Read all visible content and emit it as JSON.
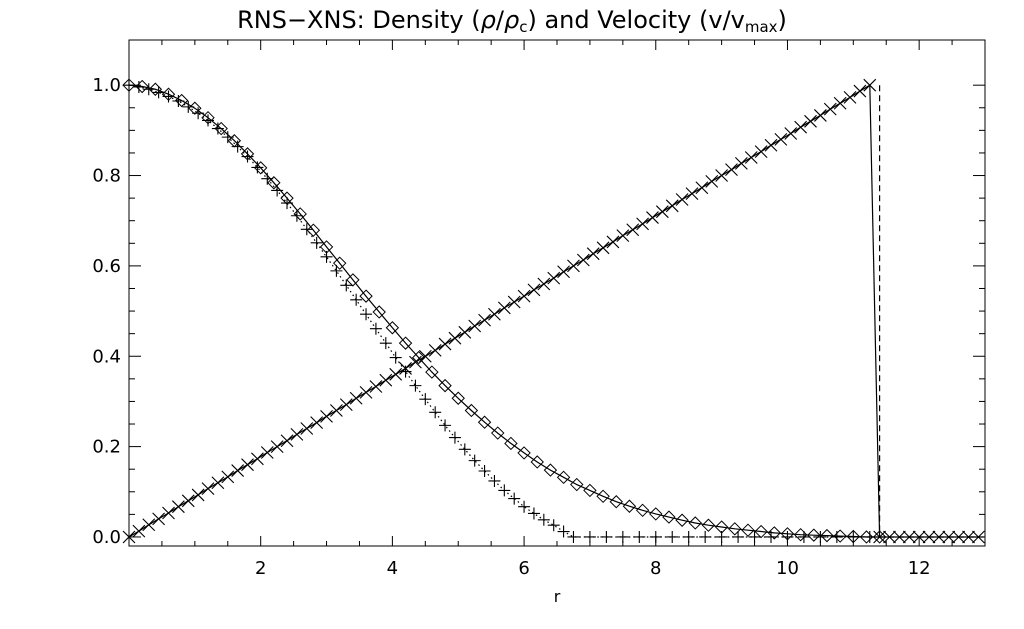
{
  "chart_data": {
    "type": "scatter",
    "title_parts": {
      "prefix": "RNS−XNS: Density (",
      "rho": "ρ",
      "slash": "/",
      "rho_c": "ρ",
      "c_sub": "c",
      "middle": ") and Velocity (v/v",
      "max_sub": "max",
      "suffix": ")"
    },
    "xlabel": "r",
    "ylabel": "",
    "xlim": [
      0.0,
      13.0
    ],
    "ylim": [
      -0.02,
      1.1
    ],
    "x_ticks": [
      2,
      4,
      6,
      8,
      10,
      12
    ],
    "x_tick_labels": [
      "2",
      "4",
      "6",
      "8",
      "10",
      "12"
    ],
    "y_ticks": [
      0.0,
      0.2,
      0.4,
      0.6,
      0.8,
      1.0
    ],
    "y_tick_labels": [
      "0.0",
      "0.2",
      "0.4",
      "0.6",
      "0.8",
      "1.0"
    ],
    "grid": false,
    "legend": "none",
    "color": "#000000",
    "series": [
      {
        "marker": "diamond",
        "line_style": "solid",
        "points": [
          [
            0.0,
            1.0
          ],
          [
            0.2,
            0.997
          ],
          [
            0.4,
            0.991
          ],
          [
            0.6,
            0.98
          ],
          [
            0.8,
            0.966
          ],
          [
            1.0,
            0.949
          ],
          [
            1.2,
            0.928
          ],
          [
            1.4,
            0.904
          ],
          [
            1.6,
            0.877
          ],
          [
            1.8,
            0.848
          ],
          [
            2.0,
            0.817
          ],
          [
            2.2,
            0.784
          ],
          [
            2.4,
            0.75
          ],
          [
            2.6,
            0.715
          ],
          [
            2.8,
            0.679
          ],
          [
            3.0,
            0.642
          ],
          [
            3.2,
            0.606
          ],
          [
            3.4,
            0.569
          ],
          [
            3.6,
            0.533
          ],
          [
            3.8,
            0.498
          ],
          [
            4.0,
            0.463
          ],
          [
            4.2,
            0.429
          ],
          [
            4.4,
            0.397
          ],
          [
            4.6,
            0.365
          ],
          [
            4.8,
            0.335
          ],
          [
            5.0,
            0.307
          ],
          [
            5.2,
            0.28
          ],
          [
            5.4,
            0.254
          ],
          [
            5.6,
            0.23
          ],
          [
            5.8,
            0.207
          ],
          [
            6.0,
            0.186
          ],
          [
            6.2,
            0.166
          ],
          [
            6.4,
            0.148
          ],
          [
            6.6,
            0.132
          ],
          [
            6.8,
            0.116
          ],
          [
            7.0,
            0.103
          ],
          [
            7.2,
            0.09
          ],
          [
            7.4,
            0.078
          ],
          [
            7.6,
            0.068
          ],
          [
            7.8,
            0.059
          ],
          [
            8.0,
            0.051
          ],
          [
            8.2,
            0.044
          ],
          [
            8.4,
            0.037
          ],
          [
            8.6,
            0.031
          ],
          [
            8.8,
            0.026
          ],
          [
            9.0,
            0.022
          ],
          [
            9.2,
            0.018
          ],
          [
            9.4,
            0.015
          ],
          [
            9.6,
            0.012
          ],
          [
            9.8,
            0.009
          ],
          [
            10.0,
            0.007
          ],
          [
            10.2,
            0.005
          ],
          [
            10.4,
            0.004
          ],
          [
            10.6,
            0.003
          ],
          [
            10.8,
            0.002
          ],
          [
            11.0,
            0.001
          ],
          [
            11.2,
            0.0
          ],
          [
            11.4,
            0.0
          ]
        ]
      },
      {
        "marker": "plus",
        "line_style": "dotted",
        "points": [
          [
            0.0,
            1.0
          ],
          [
            0.15,
            0.996
          ],
          [
            0.3,
            0.991
          ],
          [
            0.45,
            0.984
          ],
          [
            0.6,
            0.975
          ],
          [
            0.75,
            0.965
          ],
          [
            0.9,
            0.952
          ],
          [
            1.05,
            0.938
          ],
          [
            1.2,
            0.922
          ],
          [
            1.35,
            0.904
          ],
          [
            1.5,
            0.885
          ],
          [
            1.65,
            0.864
          ],
          [
            1.8,
            0.842
          ],
          [
            1.95,
            0.818
          ],
          [
            2.1,
            0.793
          ],
          [
            2.25,
            0.767
          ],
          [
            2.4,
            0.739
          ],
          [
            2.55,
            0.711
          ],
          [
            2.7,
            0.681
          ],
          [
            2.85,
            0.651
          ],
          [
            3.0,
            0.62
          ],
          [
            3.15,
            0.589
          ],
          [
            3.3,
            0.557
          ],
          [
            3.45,
            0.525
          ],
          [
            3.6,
            0.493
          ],
          [
            3.75,
            0.461
          ],
          [
            3.9,
            0.429
          ],
          [
            4.05,
            0.397
          ],
          [
            4.2,
            0.366
          ],
          [
            4.35,
            0.335
          ],
          [
            4.5,
            0.305
          ],
          [
            4.65,
            0.276
          ],
          [
            4.8,
            0.247
          ],
          [
            4.95,
            0.22
          ],
          [
            5.1,
            0.194
          ],
          [
            5.25,
            0.169
          ],
          [
            5.4,
            0.146
          ],
          [
            5.55,
            0.124
          ],
          [
            5.7,
            0.103
          ],
          [
            5.85,
            0.085
          ],
          [
            6.0,
            0.067
          ],
          [
            6.15,
            0.052
          ],
          [
            6.3,
            0.038
          ],
          [
            6.45,
            0.026
          ],
          [
            6.6,
            0.012
          ],
          [
            6.75,
            0.0
          ],
          [
            7.0,
            0.0
          ],
          [
            7.25,
            0.0
          ],
          [
            7.5,
            0.0
          ],
          [
            7.75,
            0.0
          ],
          [
            8.0,
            0.0
          ],
          [
            8.25,
            0.0
          ],
          [
            8.5,
            0.0
          ],
          [
            8.75,
            0.0
          ],
          [
            9.0,
            0.0
          ],
          [
            9.25,
            0.0
          ],
          [
            9.5,
            0.0
          ],
          [
            9.75,
            0.0
          ],
          [
            10.0,
            0.0
          ],
          [
            10.25,
            0.0
          ],
          [
            10.5,
            0.0
          ],
          [
            10.75,
            0.0
          ],
          [
            11.0,
            0.0
          ],
          [
            11.25,
            0.0
          ]
        ]
      },
      {
        "marker": "x",
        "line_style": "solid",
        "points": [
          [
            0.0,
            0.0
          ],
          [
            0.15,
            0.013
          ],
          [
            0.3,
            0.027
          ],
          [
            0.45,
            0.04
          ],
          [
            0.6,
            0.053
          ],
          [
            0.75,
            0.067
          ],
          [
            0.9,
            0.08
          ],
          [
            1.05,
            0.093
          ],
          [
            1.2,
            0.107
          ],
          [
            1.35,
            0.12
          ],
          [
            1.5,
            0.133
          ],
          [
            1.65,
            0.147
          ],
          [
            1.8,
            0.16
          ],
          [
            1.95,
            0.173
          ],
          [
            2.1,
            0.187
          ],
          [
            2.25,
            0.2
          ],
          [
            2.4,
            0.213
          ],
          [
            2.55,
            0.227
          ],
          [
            2.7,
            0.24
          ],
          [
            2.85,
            0.253
          ],
          [
            3.0,
            0.267
          ],
          [
            3.15,
            0.28
          ],
          [
            3.3,
            0.293
          ],
          [
            3.45,
            0.307
          ],
          [
            3.6,
            0.32
          ],
          [
            3.75,
            0.333
          ],
          [
            3.9,
            0.347
          ],
          [
            4.05,
            0.36
          ],
          [
            4.2,
            0.373
          ],
          [
            4.35,
            0.387
          ],
          [
            4.5,
            0.4
          ],
          [
            4.65,
            0.413
          ],
          [
            4.8,
            0.427
          ],
          [
            4.95,
            0.44
          ],
          [
            5.1,
            0.453
          ],
          [
            5.25,
            0.467
          ],
          [
            5.4,
            0.48
          ],
          [
            5.55,
            0.493
          ],
          [
            5.7,
            0.507
          ],
          [
            5.85,
            0.52
          ],
          [
            6.0,
            0.533
          ],
          [
            6.15,
            0.547
          ],
          [
            6.3,
            0.56
          ],
          [
            6.45,
            0.573
          ],
          [
            6.6,
            0.587
          ],
          [
            6.75,
            0.6
          ],
          [
            6.9,
            0.613
          ],
          [
            7.05,
            0.627
          ],
          [
            7.2,
            0.64
          ],
          [
            7.35,
            0.653
          ],
          [
            7.5,
            0.667
          ],
          [
            7.65,
            0.68
          ],
          [
            7.8,
            0.693
          ],
          [
            7.95,
            0.707
          ],
          [
            8.1,
            0.72
          ],
          [
            8.25,
            0.733
          ],
          [
            8.4,
            0.747
          ],
          [
            8.55,
            0.76
          ],
          [
            8.7,
            0.773
          ],
          [
            8.85,
            0.787
          ],
          [
            9.0,
            0.8
          ],
          [
            9.15,
            0.813
          ],
          [
            9.3,
            0.827
          ],
          [
            9.45,
            0.84
          ],
          [
            9.6,
            0.853
          ],
          [
            9.75,
            0.867
          ],
          [
            9.9,
            0.88
          ],
          [
            10.05,
            0.893
          ],
          [
            10.2,
            0.907
          ],
          [
            10.35,
            0.92
          ],
          [
            10.5,
            0.933
          ],
          [
            10.65,
            0.947
          ],
          [
            10.8,
            0.96
          ],
          [
            10.95,
            0.973
          ],
          [
            11.1,
            0.987
          ],
          [
            11.25,
            1.0
          ],
          [
            11.4,
            0.0
          ],
          [
            11.55,
            0.0
          ],
          [
            11.7,
            0.0
          ],
          [
            11.85,
            0.0
          ],
          [
            12.0,
            0.0
          ],
          [
            12.15,
            0.0
          ],
          [
            12.3,
            0.0
          ],
          [
            12.45,
            0.0
          ],
          [
            12.6,
            0.0
          ],
          [
            12.75,
            0.0
          ],
          [
            12.9,
            0.0
          ]
        ]
      },
      {
        "marker": "none",
        "line_style": "dashed",
        "points": [
          [
            11.4,
            1.0
          ],
          [
            11.4,
            0.0
          ],
          [
            13.0,
            0.0
          ]
        ]
      }
    ]
  }
}
